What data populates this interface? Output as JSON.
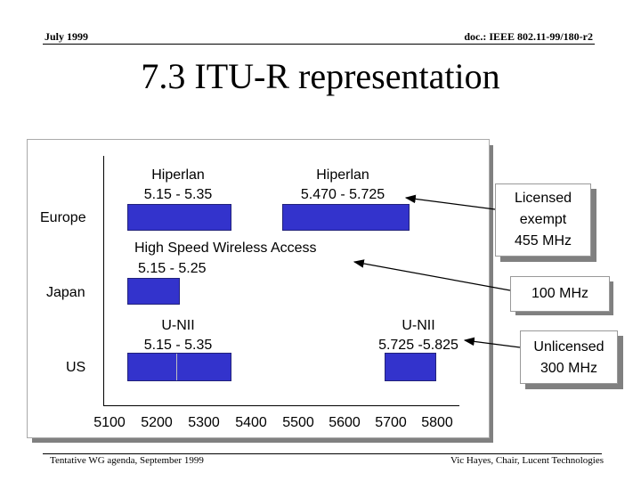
{
  "header": {
    "date": "July 1999",
    "doc": "doc.: IEEE 802.11-99/180-r2"
  },
  "title": "7.3 ITU-R representation",
  "chart": {
    "regions": [
      {
        "name": "Europe",
        "bands": [
          {
            "label": "Hiperlan",
            "range": "5.15 - 5.35"
          },
          {
            "label": "Hiperlan",
            "range": "5.470 - 5.725"
          }
        ]
      },
      {
        "name": "Japan",
        "bands": [
          {
            "label": "High Speed Wireless Access",
            "range": "5.15 - 5.25"
          }
        ]
      },
      {
        "name": "US",
        "bands": [
          {
            "label": "U-NII",
            "range": "5.15 - 5.35"
          },
          {
            "label": "U-NII",
            "range": "5.725 -5.825"
          }
        ]
      }
    ],
    "x_ticks": [
      "5100",
      "5200",
      "5300",
      "5400",
      "5500",
      "5600",
      "5700",
      "5800"
    ],
    "x_range_mhz": [
      5100,
      5850
    ]
  },
  "notes": {
    "licensed_exempt": {
      "line1": "Licensed",
      "line2": "exempt",
      "line3": "455 MHz"
    },
    "hundred": "100 MHz",
    "unlicensed": {
      "line1": "Unlicensed",
      "line2": "300 MHz"
    }
  },
  "colors": {
    "band": "#3333cc",
    "panel_shadow": "#808080"
  },
  "footer": {
    "left": "Tentative WG agenda, September 1999",
    "right": "Vic Hayes, Chair, Lucent Technologies"
  }
}
